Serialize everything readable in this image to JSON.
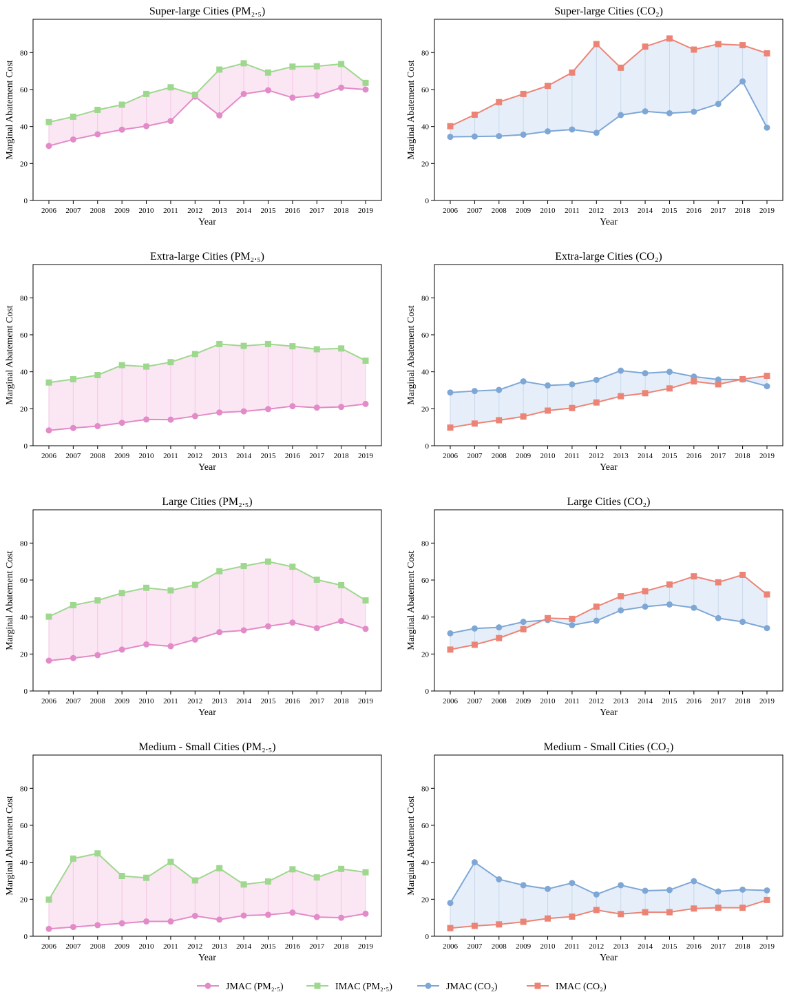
{
  "chart_data": [
    {
      "type": "line",
      "title": "Super-large Cities (PM₂.₅)",
      "xlabel": "Year",
      "ylabel": "Marginal Abatement Cost",
      "x": [
        "2006",
        "2007",
        "2008",
        "2009",
        "2010",
        "2011",
        "2012",
        "2013",
        "2014",
        "2015",
        "2016",
        "2017",
        "2018",
        "2019"
      ],
      "yticks": [
        "0",
        "20",
        "40",
        "60",
        "80"
      ],
      "ylim": [
        0,
        98
      ],
      "grid": false,
      "series": [
        {
          "name": "JMAC (PM₂.₅)",
          "color": "#e38ac8",
          "marker": "circle",
          "values": [
            29.5,
            33,
            35.8,
            38.3,
            40.2,
            43,
            56.2,
            46,
            57.6,
            59.6,
            55.6,
            56.8,
            61,
            60
          ]
        },
        {
          "name": "IMAC (PM₂.₅)",
          "color": "#9ed88e",
          "marker": "square",
          "values": [
            42.4,
            45.3,
            49,
            51.8,
            57.6,
            61.2,
            57.2,
            70.8,
            74.2,
            69.2,
            72.4,
            72.6,
            73.8,
            63.6
          ]
        }
      ]
    },
    {
      "type": "line",
      "title": "Super-large Cities (CO₂)",
      "xlabel": "Year",
      "ylabel": "Marginal Abatement Cost",
      "x": [
        "2006",
        "2007",
        "2008",
        "2009",
        "2010",
        "2011",
        "2012",
        "2013",
        "2014",
        "2015",
        "2016",
        "2017",
        "2018",
        "2019"
      ],
      "yticks": [
        "0",
        "20",
        "40",
        "60",
        "80"
      ],
      "ylim": [
        0,
        98
      ],
      "grid": false,
      "series": [
        {
          "name": "JMAC (CO₂)",
          "color": "#7ea7d6",
          "marker": "circle",
          "values": [
            34.4,
            34.6,
            34.8,
            35.6,
            37.4,
            38.4,
            36.6,
            46.2,
            48.2,
            47.2,
            48,
            52.2,
            64.4,
            39.4
          ]
        },
        {
          "name": "IMAC (CO₂)",
          "color": "#ec8476",
          "marker": "square",
          "values": [
            40.2,
            46.4,
            53.2,
            57.6,
            62,
            69.2,
            84.6,
            71.8,
            83.2,
            87.6,
            81.6,
            84.6,
            84,
            79.6
          ]
        }
      ]
    },
    {
      "type": "line",
      "title": "Extra-large Cities (PM₂.₅)",
      "xlabel": "Year",
      "ylabel": "Marginal Abatement Cost",
      "x": [
        "2006",
        "2007",
        "2008",
        "2009",
        "2010",
        "2011",
        "2012",
        "2013",
        "2014",
        "2015",
        "2016",
        "2017",
        "2018",
        "2019"
      ],
      "yticks": [
        "0",
        "20",
        "40",
        "60",
        "80"
      ],
      "ylim": [
        0,
        98
      ],
      "grid": false,
      "series": [
        {
          "name": "JMAC (PM₂.₅)",
          "color": "#e38ac8",
          "marker": "circle",
          "values": [
            8.3,
            9.6,
            10.6,
            12.4,
            14.2,
            14.1,
            16,
            18,
            18.6,
            19.8,
            21.4,
            20.6,
            21,
            22.6
          ]
        },
        {
          "name": "IMAC (PM₂.₅)",
          "color": "#9ed88e",
          "marker": "square",
          "values": [
            34.2,
            36,
            38.2,
            43.6,
            42.8,
            45.2,
            49.6,
            55,
            54,
            55,
            53.8,
            52.2,
            52.6,
            46
          ]
        }
      ]
    },
    {
      "type": "line",
      "title": "Extra-large Cities (CO₂)",
      "xlabel": "Year",
      "ylabel": "Marginal Abatement Cost",
      "x": [
        "2006",
        "2007",
        "2008",
        "2009",
        "2010",
        "2011",
        "2012",
        "2013",
        "2014",
        "2015",
        "2016",
        "2017",
        "2018",
        "2019"
      ],
      "yticks": [
        "0",
        "20",
        "40",
        "60",
        "80"
      ],
      "ylim": [
        0,
        98
      ],
      "grid": false,
      "series": [
        {
          "name": "JMAC (CO₂)",
          "color": "#7ea7d6",
          "marker": "circle",
          "values": [
            28.8,
            29.6,
            30.2,
            34.8,
            32.6,
            33.2,
            35.6,
            40.6,
            39.2,
            40,
            37.4,
            35.8,
            35.8,
            32.2
          ]
        },
        {
          "name": "IMAC (CO₂)",
          "color": "#ec8476",
          "marker": "square",
          "values": [
            9.8,
            12,
            13.8,
            15.8,
            19,
            20.4,
            23.4,
            26.8,
            28.4,
            31,
            34.8,
            33.2,
            36,
            37.8
          ]
        }
      ]
    },
    {
      "type": "line",
      "title": "Large Cities (PM₂.₅)",
      "xlabel": "Year",
      "ylabel": "Marginal Abatement Cost",
      "x": [
        "2006",
        "2007",
        "2008",
        "2009",
        "2010",
        "2011",
        "2012",
        "2013",
        "2014",
        "2015",
        "2016",
        "2017",
        "2018",
        "2019"
      ],
      "yticks": [
        "0",
        "20",
        "40",
        "60",
        "80"
      ],
      "ylim": [
        0,
        98
      ],
      "grid": false,
      "series": [
        {
          "name": "JMAC (PM₂.₅)",
          "color": "#e38ac8",
          "marker": "circle",
          "values": [
            16.4,
            17.8,
            19.4,
            22.4,
            25.2,
            24.2,
            27.8,
            31.8,
            32.8,
            35,
            37,
            34,
            37.8,
            33.6
          ]
        },
        {
          "name": "IMAC (PM₂.₅)",
          "color": "#9ed88e",
          "marker": "square",
          "values": [
            40.2,
            46.4,
            49,
            53,
            55.8,
            54.4,
            57.4,
            64.8,
            67.6,
            70,
            67.2,
            60.2,
            57.2,
            49
          ]
        }
      ]
    },
    {
      "type": "line",
      "title": "Large Cities (CO₂)",
      "xlabel": "Year",
      "ylabel": "Marginal Abatement Cost",
      "x": [
        "2006",
        "2007",
        "2008",
        "2009",
        "2010",
        "2011",
        "2012",
        "2013",
        "2014",
        "2015",
        "2016",
        "2017",
        "2018",
        "2019"
      ],
      "yticks": [
        "0",
        "20",
        "40",
        "60",
        "80"
      ],
      "ylim": [
        0,
        98
      ],
      "grid": false,
      "series": [
        {
          "name": "JMAC (CO₂)",
          "color": "#7ea7d6",
          "marker": "circle",
          "values": [
            31.2,
            33.8,
            34.4,
            37.4,
            38.4,
            35.6,
            38,
            43.6,
            45.6,
            46.8,
            45,
            39.4,
            37.4,
            34
          ]
        },
        {
          "name": "IMAC (CO₂)",
          "color": "#ec8476",
          "marker": "square",
          "values": [
            22.4,
            25,
            28.6,
            33.4,
            39.4,
            39,
            45.6,
            51.2,
            54,
            57.6,
            62,
            58.8,
            62.8,
            52.2
          ]
        }
      ]
    },
    {
      "type": "line",
      "title": "Medium - Small Cities (PM₂.₅)",
      "xlabel": "Year",
      "ylabel": "Marginal Abatement Cost",
      "x": [
        "2006",
        "2007",
        "2008",
        "2009",
        "2010",
        "2011",
        "2012",
        "2013",
        "2014",
        "2015",
        "2016",
        "2017",
        "2018",
        "2019"
      ],
      "yticks": [
        "0",
        "20",
        "40",
        "60",
        "80"
      ],
      "ylim": [
        0,
        98
      ],
      "grid": false,
      "series": [
        {
          "name": "JMAC (PM₂.₅)",
          "color": "#e38ac8",
          "marker": "circle",
          "values": [
            4,
            5,
            6,
            7,
            8,
            8,
            11,
            9,
            11.2,
            11.6,
            12.8,
            10.4,
            10,
            12.2
          ]
        },
        {
          "name": "IMAC (PM₂.₅)",
          "color": "#9ed88e",
          "marker": "square",
          "values": [
            19.8,
            42,
            44.8,
            32.6,
            31.6,
            40.2,
            30.2,
            36.8,
            28,
            29.6,
            36.2,
            31.8,
            36.4,
            34.6
          ]
        }
      ]
    },
    {
      "type": "line",
      "title": "Medium - Small Cities (CO₂)",
      "xlabel": "Year",
      "ylabel": "Marginal Abatement Cost",
      "x": [
        "2006",
        "2007",
        "2008",
        "2009",
        "2010",
        "2011",
        "2012",
        "2013",
        "2014",
        "2015",
        "2016",
        "2017",
        "2018",
        "2019"
      ],
      "yticks": [
        "0",
        "20",
        "40",
        "60",
        "80"
      ],
      "ylim": [
        0,
        98
      ],
      "grid": false,
      "series": [
        {
          "name": "JMAC (CO₂)",
          "color": "#7ea7d6",
          "marker": "circle",
          "values": [
            18,
            40,
            30.8,
            27.6,
            25.6,
            28.8,
            22.6,
            27.6,
            24.6,
            25,
            29.8,
            24.2,
            25.2,
            24.8
          ]
        },
        {
          "name": "IMAC (CO₂)",
          "color": "#ec8476",
          "marker": "square",
          "values": [
            4.4,
            5.6,
            6.4,
            7.8,
            9.6,
            10.6,
            14.2,
            12,
            13,
            13,
            15,
            15.4,
            15.4,
            19.6
          ]
        }
      ]
    }
  ],
  "legend": {
    "placement": "bottom-center",
    "items": [
      {
        "label": "JMAC (PM₂.₅)",
        "color": "#e38ac8",
        "marker": "circle"
      },
      {
        "label": "IMAC (PM₂.₅)",
        "color": "#9ed88e",
        "marker": "square"
      },
      {
        "label": "JMAC (CO₂)",
        "color": "#7ea7d6",
        "marker": "circle"
      },
      {
        "label": "IMAC (CO₂)",
        "color": "#ec8476",
        "marker": "square"
      }
    ]
  },
  "fill_colors": {
    "pm25": "#fbe6f3",
    "co2": "#e6eff9"
  }
}
